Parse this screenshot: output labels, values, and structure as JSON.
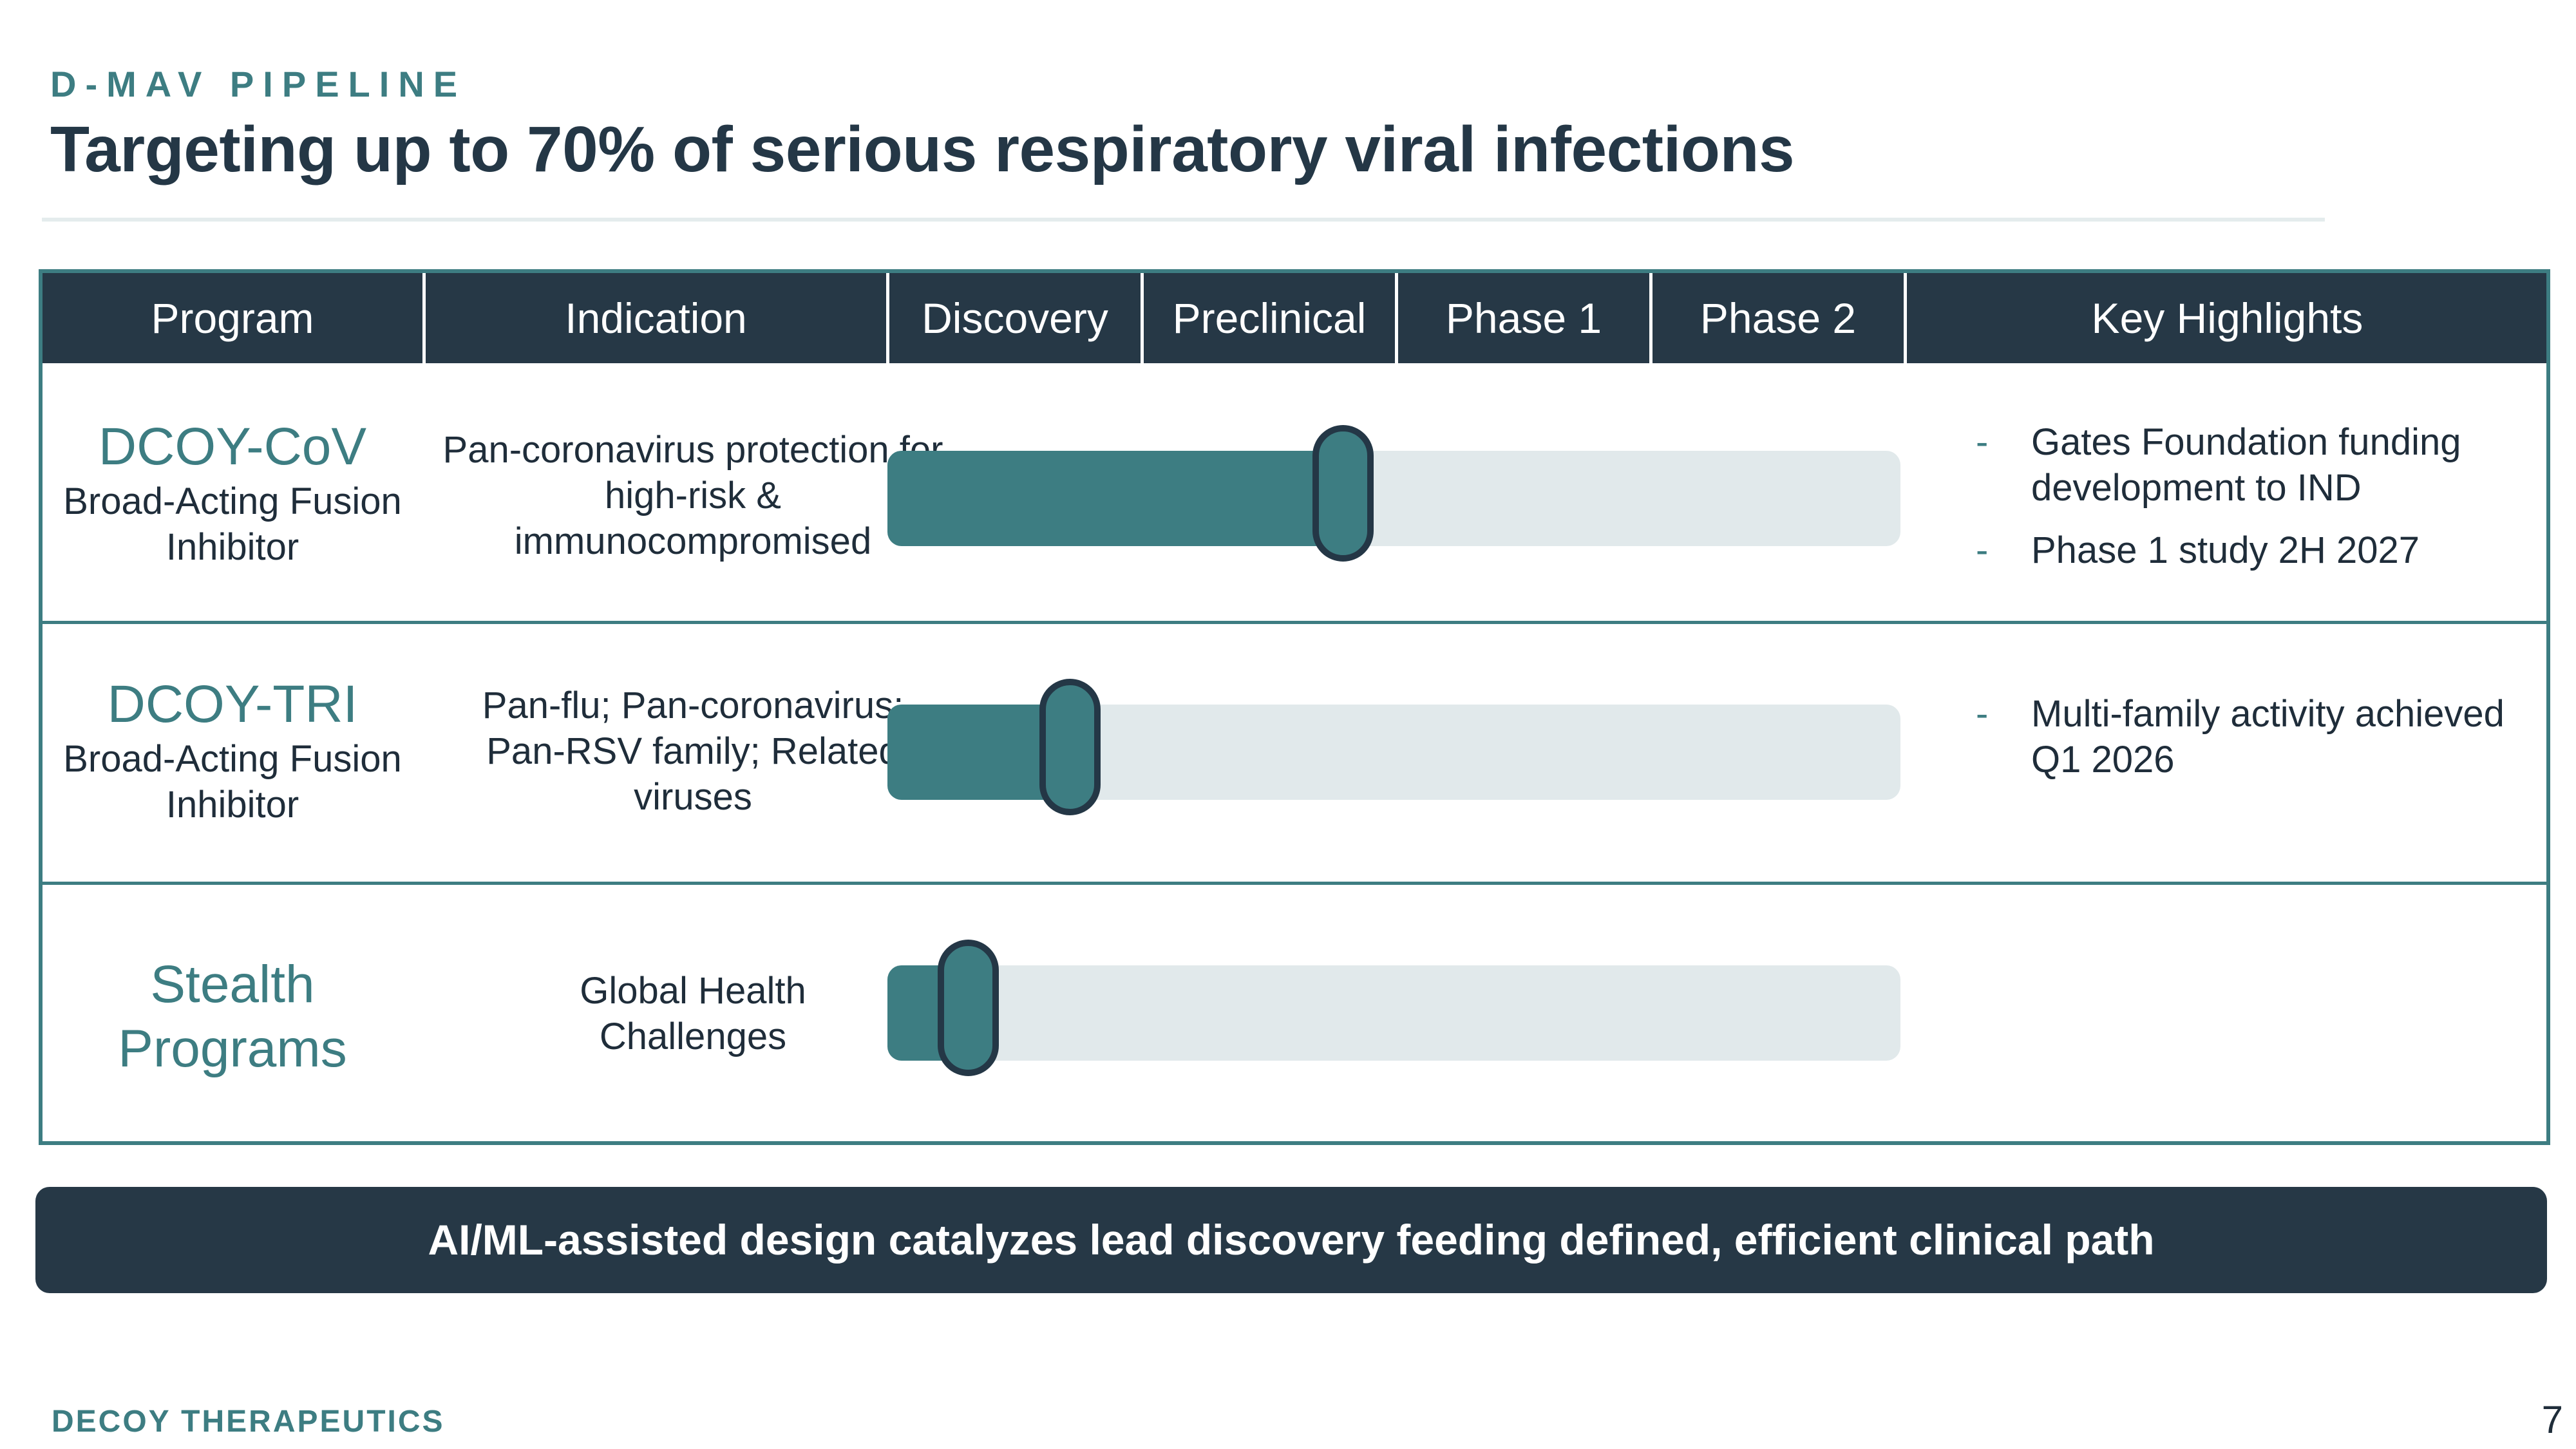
{
  "header": {
    "eyebrow": "D-MAV PIPELINE",
    "title": "Targeting up to 70% of serious respiratory viral infections"
  },
  "table": {
    "columns": [
      "Program",
      "Indication",
      "Discovery",
      "Preclinical",
      "Phase 1",
      "Phase 2",
      "Key Highlights"
    ],
    "rows": [
      {
        "program": "DCOY-CoV",
        "subtitle": "Broad-Acting Fusion Inhibitor",
        "indication": "Pan-coronavirus protection for high-risk & immunocompromised",
        "progress_pct": 45,
        "highlights": [
          "Gates Foundation funding development to IND",
          "Phase 1 study 2H 2027"
        ]
      },
      {
        "program": "DCOY-TRI",
        "subtitle": "Broad-Acting Fusion Inhibitor",
        "indication": "Pan-flu; Pan-coronavirus; Pan-RSV family; Related viruses",
        "progress_pct": 18,
        "highlights": [
          "Multi-family activity achieved Q1 2026"
        ]
      },
      {
        "program": "Stealth Programs",
        "subtitle": "",
        "indication": "Global Health Challenges",
        "progress_pct": 8,
        "highlights": []
      }
    ]
  },
  "banner": {
    "text": "AI/ML-assisted design catalyzes lead discovery feeding defined, efficient clinical path"
  },
  "footer": {
    "company": "DECOY THERAPEUTICS",
    "page_number": "7"
  },
  "colors": {
    "accent": "#3d7d82",
    "navy": "#263846",
    "track": "#e1e9eb"
  }
}
